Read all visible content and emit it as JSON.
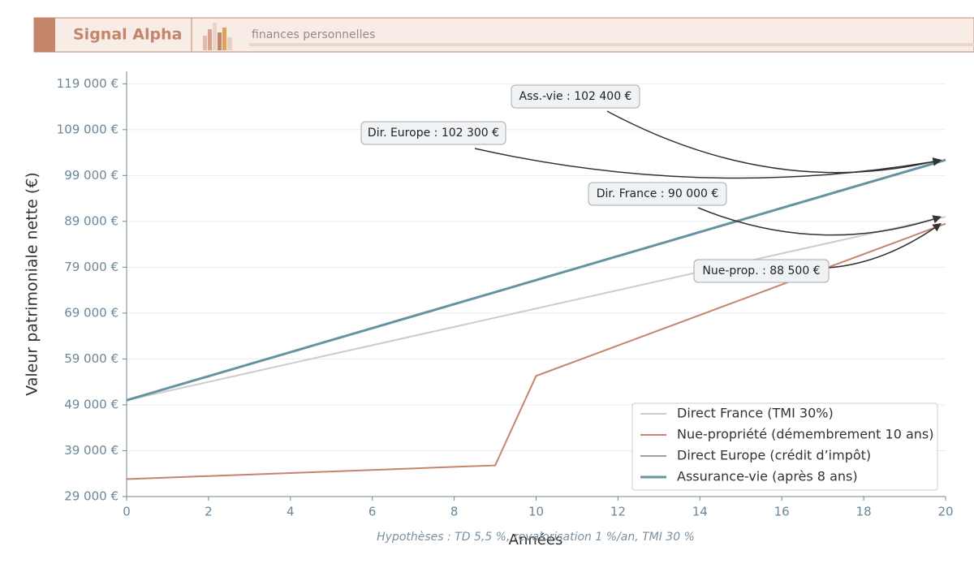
{
  "header": {
    "brand": "Signal Alpha",
    "tagline": "finances personnelles"
  },
  "chart_data": {
    "type": "line",
    "x_label": "Années",
    "y_label": "Valeur patrimoniale nette (€)",
    "note": "Hypothèses : TD 5,5 %, revalorisation 1 %/an, TMI 30 %",
    "x": [
      0,
      1,
      2,
      3,
      4,
      5,
      6,
      7,
      8,
      9,
      10,
      11,
      12,
      13,
      14,
      15,
      16,
      17,
      18,
      19,
      20
    ],
    "series": [
      {
        "name": "Direct France (TMI 30%)",
        "color": "#cccccc",
        "width": 2,
        "values": [
          50000,
          52000,
          54000,
          56000,
          58000,
          60000,
          62000,
          64000,
          66000,
          68000,
          70000,
          72000,
          74000,
          76000,
          78000,
          80000,
          82000,
          84000,
          86000,
          88000,
          90000
        ]
      },
      {
        "name": "Nue-propriété (démembrement 10 ans)",
        "color": "#c4866a",
        "width": 2,
        "values": [
          32800,
          33130,
          33470,
          33800,
          34130,
          34470,
          34800,
          35130,
          35470,
          35800,
          55300,
          58620,
          61940,
          65260,
          68580,
          71900,
          75220,
          78540,
          81860,
          85180,
          88500
        ]
      },
      {
        "name": "Direct Europe (crédit d’impôt)",
        "color": "#a0a0a0",
        "width": 2,
        "values": [
          50000,
          52615,
          55230,
          57845,
          60460,
          63075,
          65690,
          68305,
          70920,
          73535,
          76150,
          78765,
          81380,
          83995,
          86610,
          89225,
          91840,
          94455,
          97070,
          99685,
          102300
        ]
      },
      {
        "name": "Assurance-vie (après 8 ans)",
        "color": "#6693a4",
        "width": 3,
        "values": [
          50000,
          52620,
          55240,
          57860,
          60480,
          63100,
          65720,
          68340,
          70960,
          73580,
          76200,
          78820,
          81440,
          84060,
          86680,
          89300,
          91920,
          94540,
          97160,
          99780,
          102400
        ]
      }
    ],
    "annotations": [
      "Ass.-vie : 102 400 €",
      "Dir. Europe : 102 300 €",
      "Dir. France : 90 000 €",
      "Nue-prop. : 88 500 €"
    ],
    "xlim": [
      0,
      20
    ],
    "xticks": [
      0,
      2,
      4,
      6,
      8,
      10,
      12,
      14,
      16,
      18,
      20
    ],
    "ylim": [
      29000,
      121700
    ],
    "yticks": [
      {
        "value": 29000,
        "label": "29 000 €"
      },
      {
        "value": 39000,
        "label": "39 000 €"
      },
      {
        "value": 49000,
        "label": "49 000 €"
      },
      {
        "value": 59000,
        "label": "59 000 €"
      },
      {
        "value": 69000,
        "label": "69 000 €"
      },
      {
        "value": 79000,
        "label": "79 000 €"
      },
      {
        "value": 89000,
        "label": "89 000 €"
      },
      {
        "value": 99000,
        "label": "99 000 €"
      },
      {
        "value": 109000,
        "label": "109 000 €"
      },
      {
        "value": 119000,
        "label": "119 000 €"
      }
    ],
    "grid": true
  }
}
